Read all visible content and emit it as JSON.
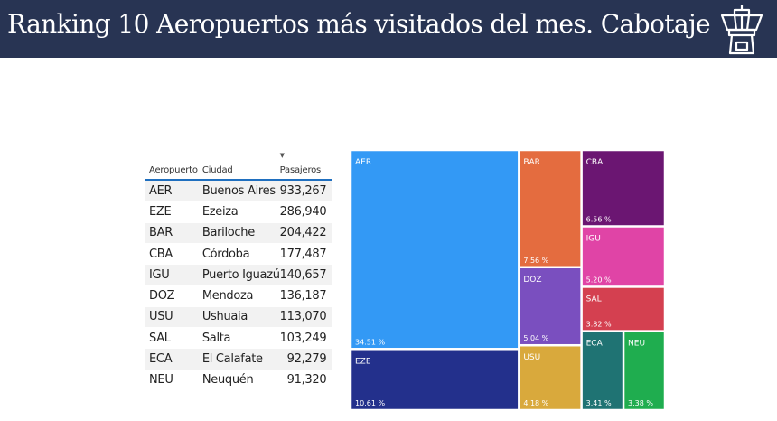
{
  "header": {
    "title": "Ranking 10 Aeropuertos más visitados del mes. Cabotaje",
    "icon": "control-tower-icon"
  },
  "table": {
    "columns": [
      "Aeropuerto",
      "Ciudad",
      "Pasajeros"
    ],
    "rows": [
      {
        "code": "AER",
        "city": "Buenos Aires",
        "passengers": "933,267"
      },
      {
        "code": "EZE",
        "city": "Ezeiza",
        "passengers": "286,940"
      },
      {
        "code": "BAR",
        "city": "Bariloche",
        "passengers": "204,422"
      },
      {
        "code": "CBA",
        "city": "Córdoba",
        "passengers": "177,487"
      },
      {
        "code": "IGU",
        "city": "Puerto Iguazú",
        "passengers": "140,657"
      },
      {
        "code": "DOZ",
        "city": "Mendoza",
        "passengers": "136,187"
      },
      {
        "code": "USU",
        "city": "Ushuaia",
        "passengers": "113,070"
      },
      {
        "code": "SAL",
        "city": "Salta",
        "passengers": "103,249"
      },
      {
        "code": "ECA",
        "city": "El Calafate",
        "passengers": "92,279"
      },
      {
        "code": "NEU",
        "city": "Neuquén",
        "passengers": "91,320"
      }
    ]
  },
  "chart_data": {
    "type": "treemap",
    "title": "",
    "items": [
      {
        "label": "AER",
        "value": 933267,
        "percent_label": "34.51 %",
        "color": "#3399f5"
      },
      {
        "label": "EZE",
        "value": 286940,
        "percent_label": "10.61 %",
        "color": "#23308c"
      },
      {
        "label": "BAR",
        "value": 204422,
        "percent_label": "7.56 %",
        "color": "#e46c3f"
      },
      {
        "label": "CBA",
        "value": 177487,
        "percent_label": "6.56 %",
        "color": "#6b1672"
      },
      {
        "label": "IGU",
        "value": 140657,
        "percent_label": "5.20 %",
        "color": "#e044a6"
      },
      {
        "label": "DOZ",
        "value": 136187,
        "percent_label": "5.04 %",
        "color": "#7a4fbf"
      },
      {
        "label": "SAL",
        "value": 103249,
        "percent_label": "3.82 %",
        "color": "#d44050"
      },
      {
        "label": "USU",
        "value": 113070,
        "percent_label": "4.18 %",
        "color": "#d9a93c"
      },
      {
        "label": "ECA",
        "value": 92279,
        "percent_label": "3.41 %",
        "color": "#1f7373"
      },
      {
        "label": "NEU",
        "value": 91320,
        "percent_label": "3.38 %",
        "color": "#1fad4f"
      }
    ]
  }
}
